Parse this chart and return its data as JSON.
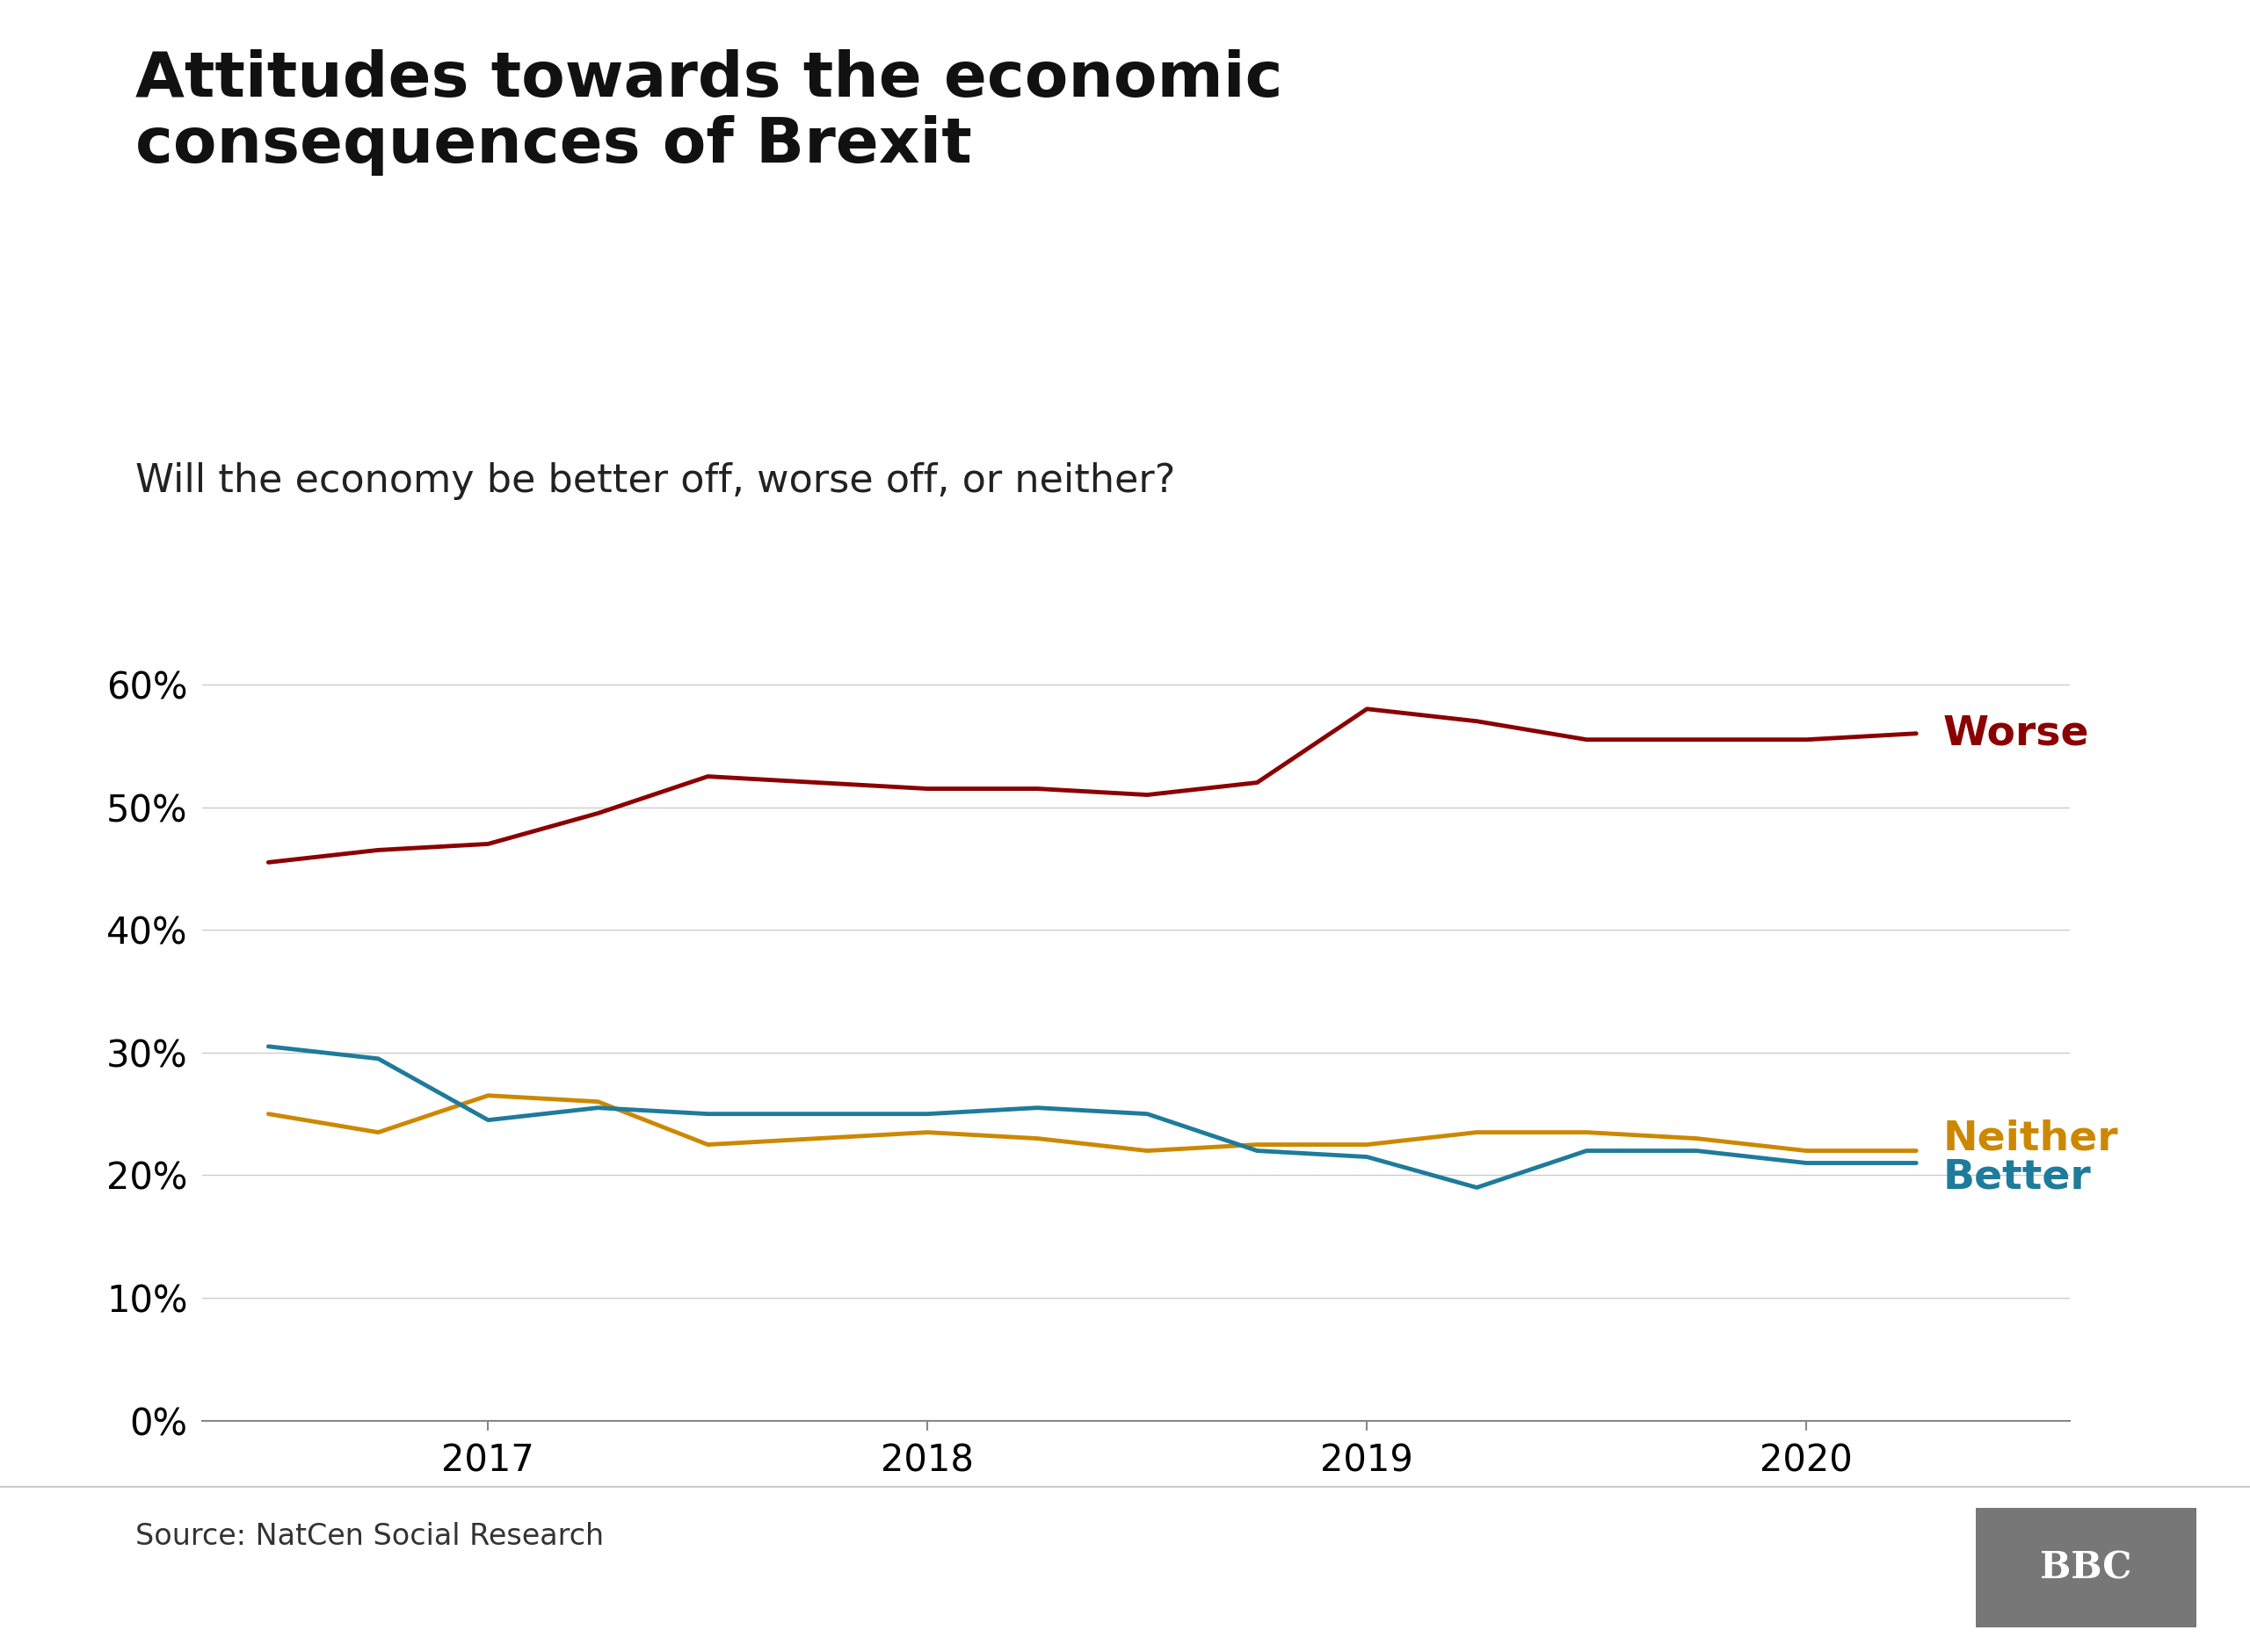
{
  "title": "Attitudes towards the economic\nconsequences of Brexit",
  "subtitle": "Will the economy be better off, worse off, or neither?",
  "source": "Source: NatCen Social Research",
  "worse": {
    "x": [
      2016.5,
      2016.75,
      2017.0,
      2017.25,
      2017.5,
      2017.75,
      2018.0,
      2018.25,
      2018.5,
      2018.75,
      2019.0,
      2019.25,
      2019.5,
      2019.75,
      2020.0,
      2020.25
    ],
    "y": [
      45.5,
      46.5,
      47.0,
      49.5,
      52.5,
      52.0,
      51.5,
      51.5,
      51.0,
      52.0,
      58.0,
      57.0,
      55.5,
      55.5,
      55.5,
      56.0
    ],
    "color": "#8B0000",
    "label": "Worse",
    "linewidth": 3.5
  },
  "neither": {
    "x": [
      2016.5,
      2016.75,
      2017.0,
      2017.25,
      2017.5,
      2017.75,
      2018.0,
      2018.25,
      2018.5,
      2018.75,
      2019.0,
      2019.25,
      2019.5,
      2019.75,
      2020.0,
      2020.25
    ],
    "y": [
      25.0,
      23.5,
      26.5,
      26.0,
      22.5,
      23.0,
      23.5,
      23.0,
      22.0,
      22.5,
      22.5,
      23.5,
      23.5,
      23.0,
      22.0,
      22.0
    ],
    "color": "#CC8800",
    "label": "Neither",
    "linewidth": 3.5
  },
  "better": {
    "x": [
      2016.5,
      2016.75,
      2017.0,
      2017.25,
      2017.5,
      2017.75,
      2018.0,
      2018.25,
      2018.5,
      2018.75,
      2019.0,
      2019.25,
      2019.5,
      2019.75,
      2020.0,
      2020.25
    ],
    "y": [
      30.5,
      29.5,
      24.5,
      25.5,
      25.0,
      25.0,
      25.0,
      25.5,
      25.0,
      22.0,
      21.5,
      19.0,
      22.0,
      22.0,
      21.0,
      21.0
    ],
    "color": "#1E7B9B",
    "label": "Better",
    "linewidth": 3.5
  },
  "xlim": [
    2016.35,
    2020.6
  ],
  "ylim": [
    0,
    70
  ],
  "yticks": [
    0,
    10,
    20,
    30,
    40,
    50,
    60
  ],
  "xticks": [
    2017,
    2018,
    2019,
    2020
  ],
  "background_color": "#ffffff",
  "grid_color": "#cccccc",
  "title_fontsize": 52,
  "subtitle_fontsize": 32,
  "tick_fontsize": 30,
  "label_fontsize": 34,
  "source_fontsize": 24
}
